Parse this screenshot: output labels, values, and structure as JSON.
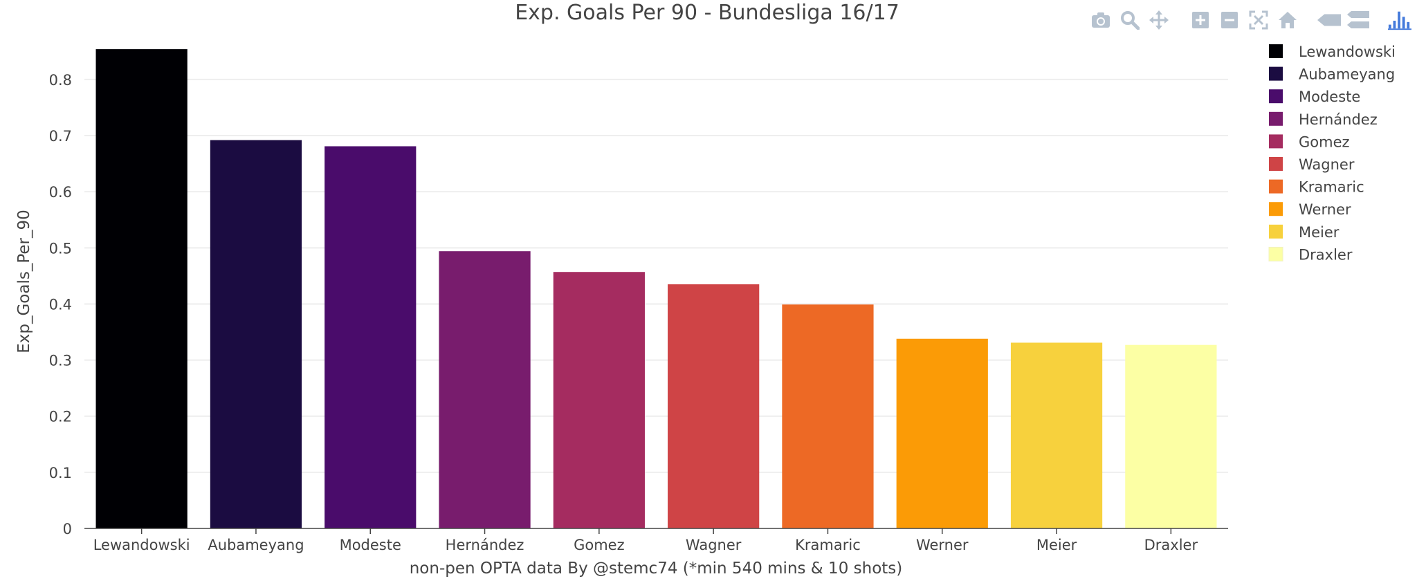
{
  "chart_data": {
    "type": "bar",
    "title": "Exp. Goals Per 90 - Bundesliga 16/17",
    "xlabel": "non-pen OPTA data By @stemc74 (*min 540 mins & 10 shots)",
    "ylabel": "Exp_Goals_Per_90",
    "ylim": [
      0,
      0.88
    ],
    "yticks": [
      "0",
      "0.1",
      "0.2",
      "0.3",
      "0.4",
      "0.5",
      "0.6",
      "0.7",
      "0.8"
    ],
    "grid": true,
    "legend_position": "top-right",
    "categories": [
      "Lewandowski",
      "Aubameyang",
      "Modeste",
      "Hernández",
      "Gomez",
      "Wagner",
      "Kramaric",
      "Werner",
      "Meier",
      "Draxler"
    ],
    "series": [
      {
        "name": "Lewandowski",
        "x": "Lewandowski",
        "value": 0.854,
        "color": "#000004"
      },
      {
        "name": "Aubameyang",
        "x": "Aubameyang",
        "value": 0.692,
        "color": "#1b0c41"
      },
      {
        "name": "Modeste",
        "x": "Modeste",
        "value": 0.681,
        "color": "#4a0c6b"
      },
      {
        "name": "Hernández",
        "x": "Hernández",
        "value": 0.494,
        "color": "#781c6d"
      },
      {
        "name": "Gomez",
        "x": "Gomez",
        "value": 0.457,
        "color": "#a52c60"
      },
      {
        "name": "Wagner",
        "x": "Wagner",
        "value": 0.435,
        "color": "#cf4446"
      },
      {
        "name": "Kramaric",
        "x": "Kramaric",
        "value": 0.399,
        "color": "#ed6925"
      },
      {
        "name": "Werner",
        "x": "Werner",
        "value": 0.338,
        "color": "#fb9b06"
      },
      {
        "name": "Meier",
        "x": "Meier",
        "value": 0.331,
        "color": "#f7d13d"
      },
      {
        "name": "Draxler",
        "x": "Draxler",
        "value": 0.327,
        "color": "#fcffa4"
      }
    ]
  },
  "modebar": {
    "icons": [
      "camera-icon",
      "zoom-icon",
      "pan-icon",
      "zoom-in-icon",
      "zoom-out-icon",
      "autoscale-icon",
      "reset-axes-icon",
      "hover-closest-icon",
      "hover-compare-icon",
      "plotly-logo-icon"
    ],
    "icon_color": "#b6c2cf",
    "logo_color": "#447adb"
  }
}
